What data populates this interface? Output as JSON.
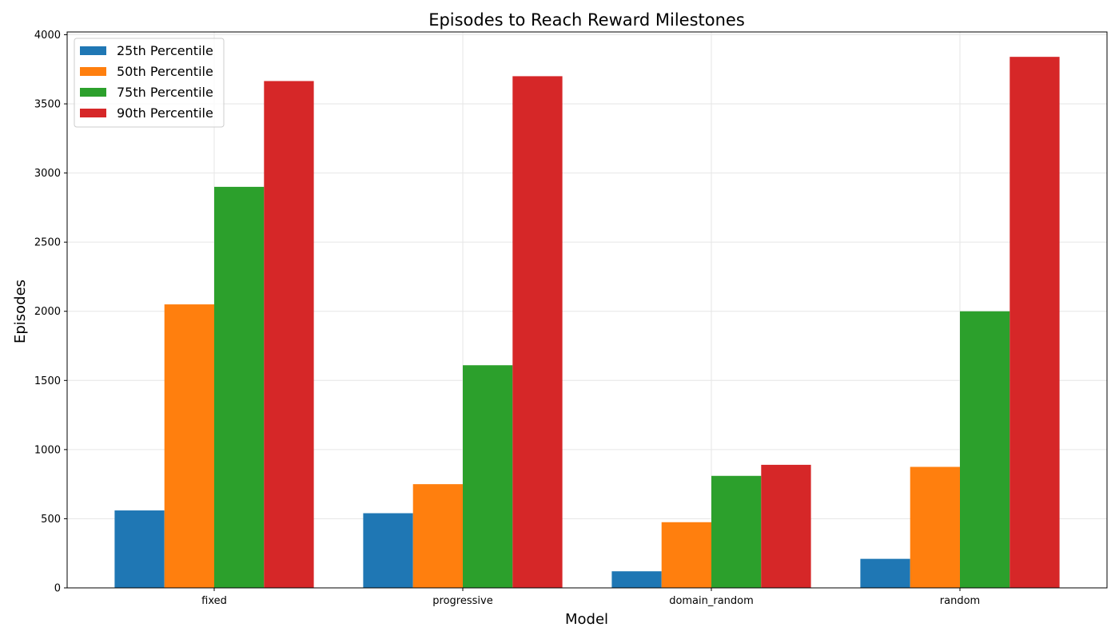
{
  "chart_data": {
    "type": "bar",
    "title": "Episodes to Reach Reward Milestones",
    "xlabel": "Model",
    "ylabel": "Episodes",
    "categories": [
      "fixed",
      "progressive",
      "domain_random",
      "random"
    ],
    "ylim": [
      0,
      4020
    ],
    "yticks": [
      0,
      500,
      1000,
      1500,
      2000,
      2500,
      3000,
      3500,
      4000
    ],
    "grid": true,
    "legend_position": "top-left",
    "series": [
      {
        "name": "25th Percentile",
        "color": "#1f77b4",
        "values": [
          560,
          540,
          120,
          210
        ]
      },
      {
        "name": "50th Percentile",
        "color": "#ff7f0e",
        "values": [
          2050,
          750,
          475,
          875
        ]
      },
      {
        "name": "75th Percentile",
        "color": "#2ca02c",
        "values": [
          2900,
          1610,
          810,
          2000
        ]
      },
      {
        "name": "90th Percentile",
        "color": "#d62728",
        "values": [
          3665,
          3700,
          890,
          3840
        ]
      }
    ]
  }
}
